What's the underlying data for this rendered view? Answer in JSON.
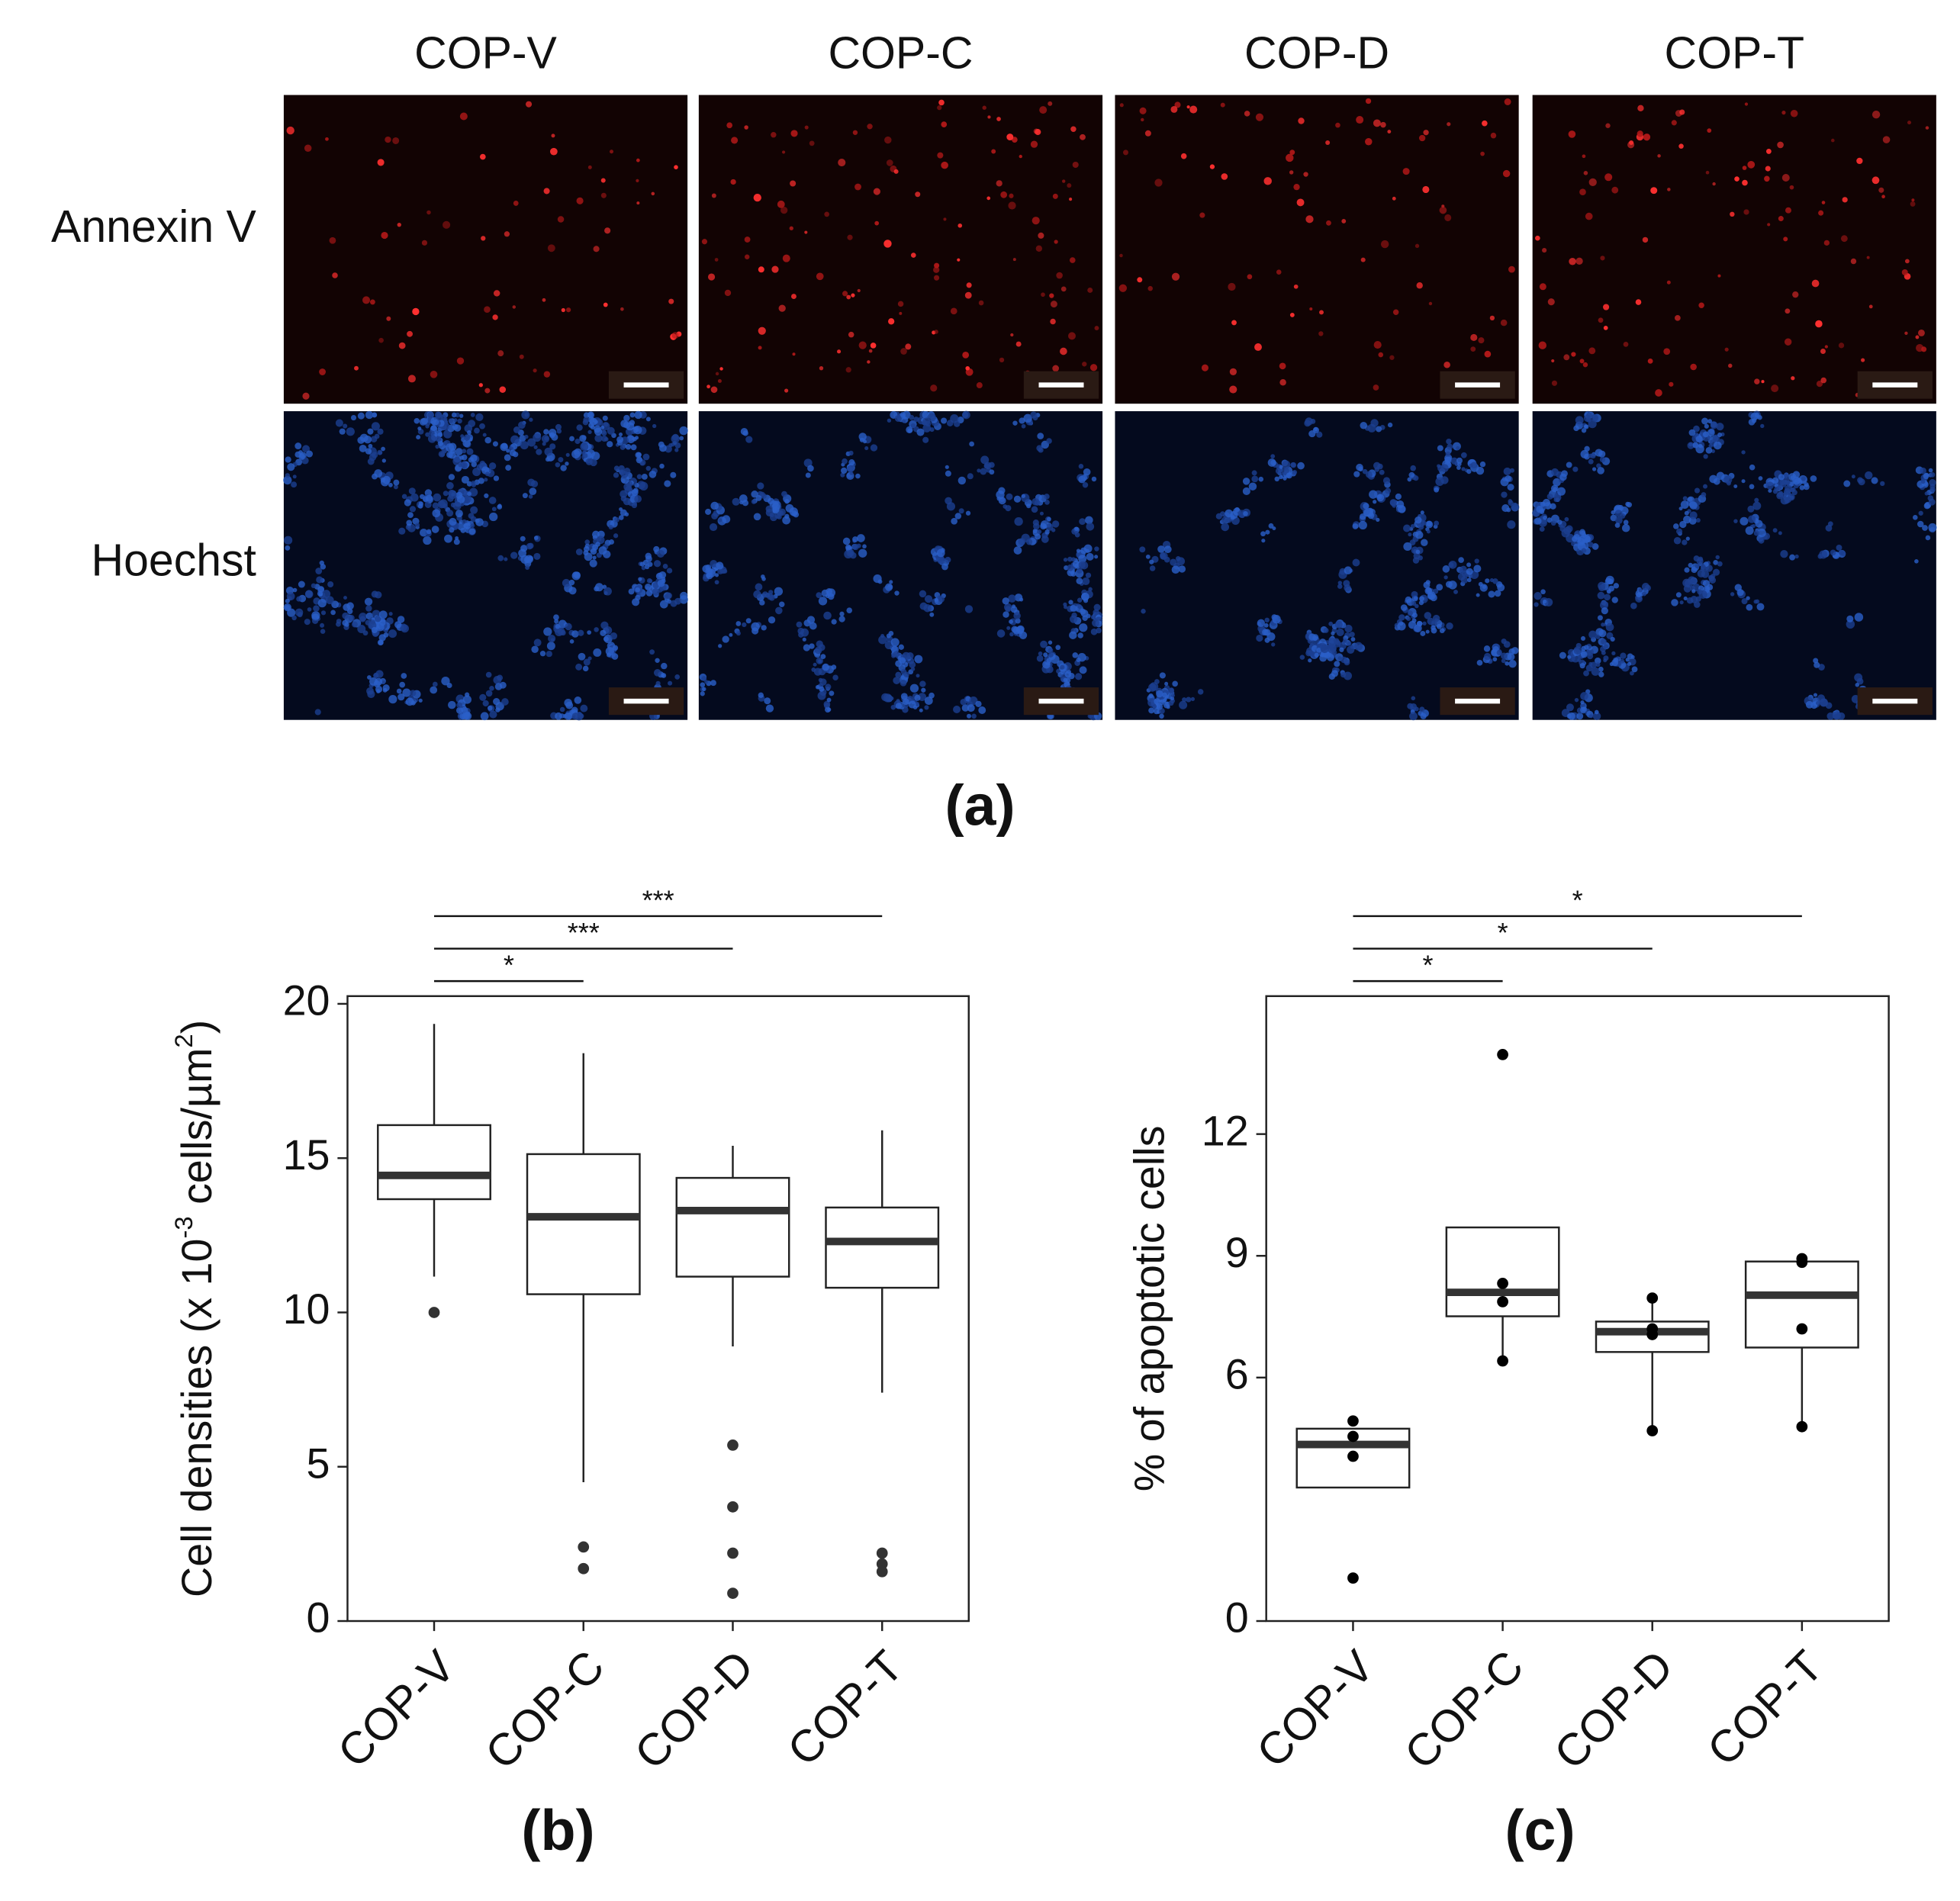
{
  "panel_a": {
    "columns": [
      "COP-V",
      "COP-C",
      "COP-D",
      "COP-T"
    ],
    "rows": [
      "Annexin V",
      "Hoechst"
    ],
    "label": "(a)"
  },
  "chart_data": [
    {
      "type": "box",
      "panel_label": "(b)",
      "ylabel": [
        "Cell densities (x 10",
        "-3",
        " cells/µm",
        "2",
        ")"
      ],
      "categories": [
        "COP-V",
        "COP-C",
        "COP-D",
        "COP-T"
      ],
      "boxes": [
        {
          "whisker_low": 11.16,
          "q1": 13.67,
          "median": 14.44,
          "q3": 16.07,
          "whisker_high": 19.35,
          "outliers": [
            10.0
          ]
        },
        {
          "whisker_low": 4.5,
          "q1": 10.59,
          "median": 13.1,
          "q3": 15.13,
          "whisker_high": 18.4,
          "outliers": [
            2.4,
            1.7
          ]
        },
        {
          "whisker_low": 8.9,
          "q1": 11.16,
          "median": 13.3,
          "q3": 14.36,
          "whisker_high": 15.4,
          "outliers": [
            5.7,
            3.7,
            2.2,
            0.9
          ]
        },
        {
          "whisker_low": 7.4,
          "q1": 10.8,
          "median": 12.3,
          "q3": 13.4,
          "whisker_high": 15.9,
          "outliers": [
            2.2,
            1.85,
            1.6
          ]
        }
      ],
      "annotations": [
        "*",
        "***",
        "***"
      ],
      "ylim": [
        0,
        20.25
      ],
      "yticks": [
        0,
        5,
        10,
        15,
        20
      ],
      "color": "#333333"
    },
    {
      "type": "box",
      "panel_label": "(c)",
      "ylabel": [
        "% of apoptotic cells"
      ],
      "categories": [
        "COP-V",
        "COP-C",
        "COP-D",
        "COP-T"
      ],
      "boxes": [
        {
          "whisker_low": null,
          "q1": 3.29,
          "median": 4.35,
          "q3": 4.74,
          "whisker_high": null,
          "points": [
            4.93,
            4.55,
            4.06,
            1.06
          ]
        },
        {
          "whisker_low": 6.41,
          "q1": 7.51,
          "median": 8.1,
          "q3": 9.7,
          "whisker_high": null,
          "points": [
            8.32,
            7.87,
            6.41,
            13.96
          ]
        },
        {
          "whisker_low": 4.69,
          "q1": 6.63,
          "median": 7.13,
          "q3": 7.38,
          "whisker_high": 7.96,
          "points": [
            7.96,
            7.2,
            7.06,
            4.69
          ]
        },
        {
          "whisker_low": 4.79,
          "q1": 6.74,
          "median": 8.03,
          "q3": 8.86,
          "whisker_high": null,
          "points": [
            8.93,
            8.84,
            7.2,
            4.79
          ]
        }
      ],
      "annotations": [
        "*",
        "*",
        "*"
      ],
      "ylim": [
        0,
        15.4
      ],
      "yticks": [
        0,
        6,
        9,
        12
      ],
      "color": "#000000"
    }
  ]
}
